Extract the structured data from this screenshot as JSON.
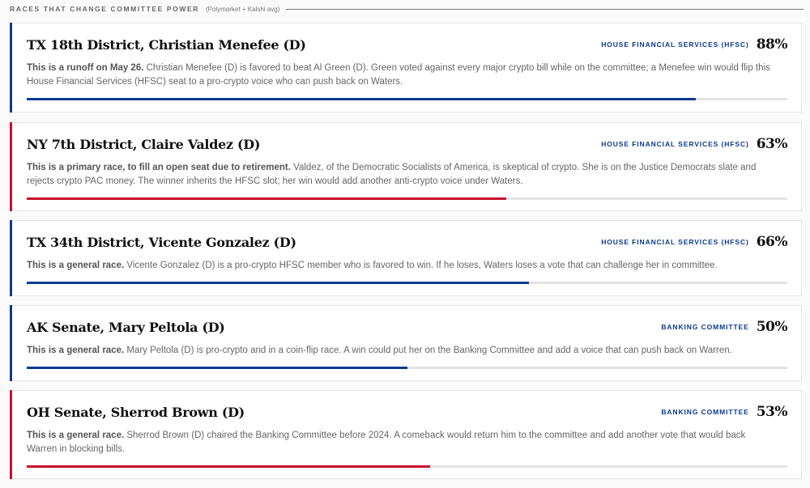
{
  "header": {
    "title": "RACES THAT CHANGE COMMITTEE POWER",
    "subtitle": "(Polymarket + Kalshi avg)"
  },
  "colors": {
    "blue": "#0b3a8f",
    "red": "#c8102e"
  },
  "races": [
    {
      "title": "TX 18th District, Christian Menefee (D)",
      "committee": "HOUSE FINANCIAL SERVICES (HFSC)",
      "probability": "88%",
      "probability_value": 88,
      "party_color": "blue",
      "lead": "This is a runoff on May 26.",
      "text": " Christian Menefee (D) is favored to beat Al Green (D). Green voted against every major crypto bill while on the committee; a Menefee win would flip this House Financial Services (HFSC) seat to a pro-crypto voice who can push back on Waters."
    },
    {
      "title": "NY 7th District, Claire Valdez (D)",
      "committee": "HOUSE FINANCIAL SERVICES (HFSC)",
      "probability": "63%",
      "probability_value": 63,
      "party_color": "red",
      "lead": "This is a primary race, to fill an open seat due to retirement.",
      "text": " Valdez, of the Democratic Socialists of America, is skeptical of crypto. She is on the Justice Democrats slate and rejects crypto PAC money. The winner inherits the HFSC slot; her win would add another anti-crypto voice under Waters."
    },
    {
      "title": "TX 34th District, Vicente Gonzalez (D)",
      "committee": "HOUSE FINANCIAL SERVICES (HFSC)",
      "probability": "66%",
      "probability_value": 66,
      "party_color": "blue",
      "lead": "This is a general race.",
      "text": " Vicente Gonzalez (D) is a pro-crypto HFSC member who is favored to win. If he loses, Waters loses a vote that can challenge her in committee."
    },
    {
      "title": "AK Senate, Mary Peltola (D)",
      "committee": "BANKING COMMITTEE",
      "probability": "50%",
      "probability_value": 50,
      "party_color": "blue",
      "lead": "This is a general race.",
      "text": " Mary Peltola (D) is pro-crypto and in a coin-flip race. A win could put her on the Banking Committee and add a voice that can push back on Warren."
    },
    {
      "title": "OH Senate, Sherrod Brown (D)",
      "committee": "BANKING COMMITTEE",
      "probability": "53%",
      "probability_value": 53,
      "party_color": "red",
      "lead": "This is a general race.",
      "text": " Sherrod Brown (D) chaired the Banking Committee before 2024. A comeback would return him to the committee and add another vote that would back Warren in blocking bills."
    }
  ]
}
